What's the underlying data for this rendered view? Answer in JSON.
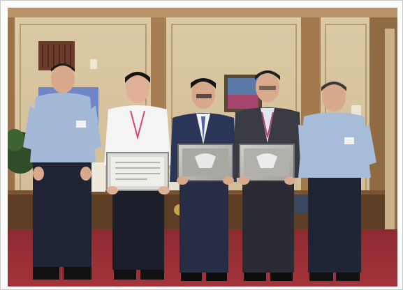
{
  "photo": {
    "subject_icon": "group-photo-icon",
    "people_count": 5,
    "certificates_count": 3,
    "colors": {
      "wall": "#d8c6a3",
      "wood_panel": "#a0784d",
      "carpet": "#9b2f35",
      "uniform_shirt": "#9fb6d3",
      "navy_trousers": "#1e2433",
      "dark_suit": "#2b2f3f",
      "certificate_frame": "#b9b8b4"
    }
  }
}
